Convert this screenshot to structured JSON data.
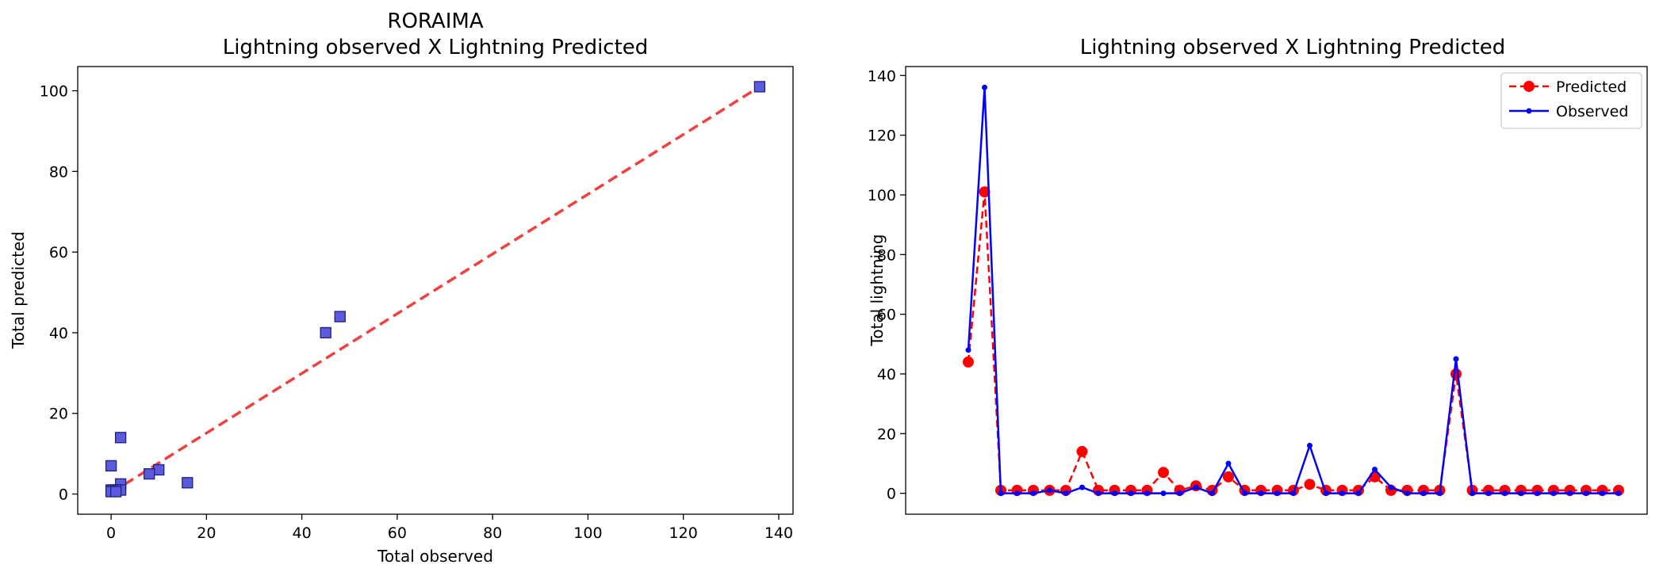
{
  "chart_data": [
    {
      "type": "scatter",
      "title": "RORAIMA",
      "subtitle": "Lightning observed X Lightning Predicted",
      "xlabel": "Total observed",
      "ylabel": "Total predicted",
      "xlim": [
        -7,
        143
      ],
      "ylim": [
        -5,
        106
      ],
      "xticks": [
        "0",
        "20",
        "40",
        "60",
        "80",
        "100",
        "120",
        "140"
      ],
      "yticks": [
        "0",
        "20",
        "40",
        "60",
        "80",
        "100"
      ],
      "grid": false,
      "points": [
        {
          "x": 136,
          "y": 101
        },
        {
          "x": 48,
          "y": 44
        },
        {
          "x": 45,
          "y": 40
        },
        {
          "x": 2,
          "y": 14
        },
        {
          "x": 0,
          "y": 7
        },
        {
          "x": 10,
          "y": 6
        },
        {
          "x": 8,
          "y": 5
        },
        {
          "x": 16,
          "y": 2.8
        },
        {
          "x": 2,
          "y": 2.5
        },
        {
          "x": 0,
          "y": 1
        },
        {
          "x": 0.5,
          "y": 1
        },
        {
          "x": 1,
          "y": 1
        },
        {
          "x": 1.5,
          "y": 1
        },
        {
          "x": 2,
          "y": 1
        },
        {
          "x": 0,
          "y": 0.6
        },
        {
          "x": 1,
          "y": 0.6
        }
      ],
      "fit_line": {
        "x": [
          0,
          136
        ],
        "y": [
          0.3,
          101
        ]
      },
      "colors": {
        "points": "#5b5bdf",
        "edge": "#20207a",
        "fit": "#f04040"
      }
    },
    {
      "type": "line",
      "title": "Lightning observed X Lightning Predicted",
      "xlabel": "",
      "ylabel": "Total lightning",
      "ylim": [
        -7,
        143
      ],
      "yticks": [
        "0",
        "20",
        "40",
        "60",
        "80",
        "100",
        "120",
        "140"
      ],
      "grid": false,
      "legend": "top-right",
      "x": [
        0,
        1,
        2,
        3,
        4,
        5,
        6,
        7,
        8,
        9,
        10,
        11,
        12,
        13,
        14,
        15,
        16,
        17,
        18,
        19,
        20,
        21,
        22,
        23,
        24,
        25,
        26,
        27,
        28,
        29,
        30,
        31,
        32,
        33,
        34,
        35,
        36,
        37,
        38,
        39,
        40
      ],
      "series": [
        {
          "name": "Predicted",
          "color": "#ff0000",
          "style": "dashed",
          "marker": "large-circle",
          "values": [
            44,
            101,
            1,
            1,
            1,
            1,
            1,
            14,
            1,
            1,
            1,
            1,
            7,
            1,
            2.5,
            1,
            5.5,
            1,
            1,
            1,
            1,
            3,
            1,
            1,
            1,
            5.5,
            1,
            1,
            1,
            1,
            40,
            1,
            1,
            1,
            1,
            1,
            1,
            1,
            1,
            1,
            1
          ]
        },
        {
          "name": "Observed",
          "color": "#0000ff",
          "style": "solid",
          "marker": "small-circle",
          "values": [
            48,
            136,
            0,
            0,
            0,
            1,
            0,
            2,
            0,
            0,
            0,
            0,
            0,
            0,
            2,
            0,
            10,
            0,
            0,
            0,
            0,
            16,
            0,
            0,
            0,
            8,
            2,
            0,
            0,
            0,
            45,
            0,
            0,
            0,
            0,
            0,
            0,
            0,
            0,
            0,
            0
          ]
        }
      ]
    }
  ]
}
